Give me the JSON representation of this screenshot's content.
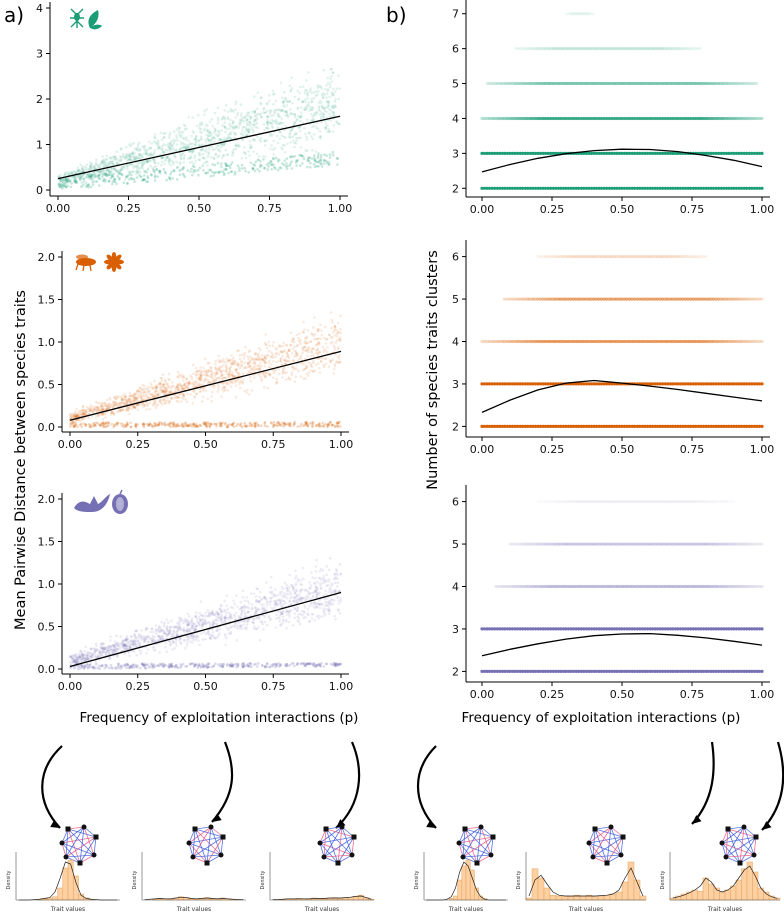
{
  "panel_labels": {
    "a": "a)",
    "b": "b)"
  },
  "ylabel_left": "Mean Pairwise Distance between species traits",
  "ylabel_right": "Number of species traits clusters",
  "xlabel_left": "Frequency of exploitation interactions (p)",
  "xlabel_right": "Frequency of exploitation interactions (p)",
  "mini_plot": {
    "ylabel": "Density",
    "xlabel": "Trait values"
  },
  "colors": {
    "green": "#1b9e77",
    "orange": "#d95f02",
    "purple": "#7570b3",
    "hist": "#fdd0a2",
    "hist_stroke": "#e6a15c"
  },
  "icons": [
    "ant-and-leaf-icon",
    "fly-and-flower-icon",
    "bat-and-fruit-icon"
  ],
  "chart_data": [
    {
      "type": "scatter",
      "title": "",
      "xlabel": "",
      "ylabel": "",
      "xlim": [
        0,
        1
      ],
      "ylim": [
        0,
        4
      ],
      "x_ticks": [
        "0.00",
        "0.25",
        "0.50",
        "0.75",
        "1.00"
      ],
      "y_ticks": [
        "0",
        "1",
        "2",
        "3",
        "4"
      ],
      "color": "#1b9e77",
      "band": {
        "low": [
          0.0,
          0.6
        ],
        "high": [
          0.4,
          3.2
        ]
      },
      "lower_band": {
        "low": [
          0.0,
          0.55
        ],
        "high": [
          0.25,
          0.85
        ]
      },
      "fit": {
        "x": [
          0,
          1
        ],
        "y": [
          0.25,
          1.62
        ]
      }
    },
    {
      "type": "scatter",
      "title": "",
      "xlabel": "",
      "ylabel": "",
      "xlim": [
        0,
        1
      ],
      "ylim": [
        0,
        2
      ],
      "x_ticks": [
        "0.00",
        "0.25",
        "0.50",
        "0.75",
        "1.00"
      ],
      "y_ticks": [
        "0.0",
        "0.5",
        "1.0",
        "1.5",
        "2.0"
      ],
      "color": "#d95f02",
      "band": {
        "low": [
          0.0,
          0.5
        ],
        "high": [
          0.2,
          1.5
        ]
      },
      "lower_band": {
        "low": [
          0.0,
          0.0
        ],
        "high": [
          0.05,
          0.06
        ]
      },
      "fit": {
        "x": [
          0,
          1
        ],
        "y": [
          0.08,
          0.89
        ]
      }
    },
    {
      "type": "scatter",
      "title": "",
      "xlabel": "",
      "ylabel": "",
      "xlim": [
        0,
        1
      ],
      "ylim": [
        0,
        2
      ],
      "x_ticks": [
        "0.00",
        "0.25",
        "0.50",
        "0.75",
        "1.00"
      ],
      "y_ticks": [
        "0.0",
        "0.5",
        "1.0",
        "1.5",
        "2.0"
      ],
      "color": "#7570b3",
      "band": {
        "low": [
          0.0,
          0.45
        ],
        "high": [
          0.2,
          1.45
        ]
      },
      "lower_band": {
        "low": [
          0.0,
          0.03
        ],
        "high": [
          0.06,
          0.07
        ]
      },
      "fit": {
        "x": [
          0,
          1
        ],
        "y": [
          0.03,
          0.9
        ]
      }
    },
    {
      "type": "scatter",
      "title": "",
      "xlabel": "",
      "ylabel": "",
      "xlim": [
        0,
        1
      ],
      "ylim": [
        1.75,
        7.25
      ],
      "x_ticks": [
        "0.00",
        "0.25",
        "0.50",
        "0.75",
        "1.00"
      ],
      "y_ticks": [
        "2",
        "3",
        "4",
        "5",
        "6",
        "7"
      ],
      "color": "#1b9e77",
      "rows": [
        {
          "y": 2,
          "from": 0.0,
          "to": 1.0,
          "alpha": 1.0
        },
        {
          "y": 3,
          "from": 0.0,
          "to": 1.0,
          "alpha": 1.0
        },
        {
          "y": 4,
          "from": 0.0,
          "to": 1.0,
          "alpha": 0.85
        },
        {
          "y": 5,
          "from": 0.02,
          "to": 0.98,
          "alpha": 0.55
        },
        {
          "y": 6,
          "from": 0.12,
          "to": 0.78,
          "alpha": 0.22
        },
        {
          "y": 7,
          "from": 0.3,
          "to": 0.4,
          "alpha": 0.12
        }
      ],
      "fit": {
        "x": [
          0,
          0.1,
          0.2,
          0.3,
          0.4,
          0.5,
          0.6,
          0.7,
          0.8,
          0.9,
          1.0
        ],
        "y": [
          2.47,
          2.68,
          2.86,
          2.99,
          3.08,
          3.12,
          3.11,
          3.05,
          2.94,
          2.8,
          2.62
        ]
      }
    },
    {
      "type": "scatter",
      "title": "",
      "xlabel": "",
      "ylabel": "",
      "xlim": [
        0,
        1
      ],
      "ylim": [
        1.75,
        6.25
      ],
      "x_ticks": [
        "0.00",
        "0.25",
        "0.50",
        "0.75",
        "1.00"
      ],
      "y_ticks": [
        "2",
        "3",
        "4",
        "5",
        "6"
      ],
      "color": "#d95f02",
      "rows": [
        {
          "y": 2,
          "from": 0.0,
          "to": 1.0,
          "alpha": 1.0
        },
        {
          "y": 3,
          "from": 0.0,
          "to": 1.0,
          "alpha": 1.0
        },
        {
          "y": 4,
          "from": 0.0,
          "to": 1.0,
          "alpha": 0.6
        },
        {
          "y": 5,
          "from": 0.08,
          "to": 1.0,
          "alpha": 0.55
        },
        {
          "y": 6,
          "from": 0.2,
          "to": 0.8,
          "alpha": 0.2
        }
      ],
      "fit": {
        "x": [
          0,
          0.1,
          0.2,
          0.3,
          0.4,
          0.5,
          0.6,
          0.7,
          0.8,
          0.9,
          1.0
        ],
        "y": [
          2.33,
          2.62,
          2.86,
          3.02,
          3.08,
          3.02,
          2.95,
          2.87,
          2.78,
          2.69,
          2.6
        ]
      }
    },
    {
      "type": "scatter",
      "title": "",
      "xlabel": "",
      "ylabel": "",
      "xlim": [
        0,
        1
      ],
      "ylim": [
        1.75,
        6.25
      ],
      "x_ticks": [
        "0.00",
        "0.25",
        "0.50",
        "0.75",
        "1.00"
      ],
      "y_ticks": [
        "2",
        "3",
        "4",
        "5",
        "6"
      ],
      "color": "#7570b3",
      "rows": [
        {
          "y": 2,
          "from": 0.0,
          "to": 1.0,
          "alpha": 1.0
        },
        {
          "y": 3,
          "from": 0.0,
          "to": 1.0,
          "alpha": 1.0
        },
        {
          "y": 4,
          "from": 0.05,
          "to": 1.0,
          "alpha": 0.45
        },
        {
          "y": 5,
          "from": 0.1,
          "to": 1.0,
          "alpha": 0.35
        },
        {
          "y": 6,
          "from": 0.2,
          "to": 0.9,
          "alpha": 0.1
        }
      ],
      "fit": {
        "x": [
          0,
          0.1,
          0.2,
          0.3,
          0.4,
          0.5,
          0.6,
          0.7,
          0.8,
          0.9,
          1.0
        ],
        "y": [
          2.37,
          2.52,
          2.65,
          2.76,
          2.84,
          2.88,
          2.89,
          2.85,
          2.79,
          2.71,
          2.62
        ]
      }
    }
  ],
  "histograms": [
    {
      "bars": [
        0,
        0,
        0,
        0,
        0.02,
        0.03,
        0.05,
        0.08,
        0.3,
        0.8,
        1.0,
        0.6,
        0.15,
        0.05,
        0.02,
        0,
        0,
        0,
        0,
        0
      ],
      "curve": [
        0,
        0,
        0,
        0.01,
        0.02,
        0.04,
        0.06,
        0.2,
        0.55,
        0.95,
        0.9,
        0.45,
        0.12,
        0.04,
        0.02,
        0.01,
        0,
        0,
        0,
        0
      ]
    },
    {
      "bars": [
        0,
        0,
        0.02,
        0.04,
        0.03,
        0.02,
        0.05,
        0.08,
        0.06,
        0.03,
        0.02,
        0.04,
        0.06,
        0.03,
        0.02,
        0.05,
        0.03,
        0.02,
        0.01,
        0
      ],
      "curve": [
        0.01,
        0.02,
        0.03,
        0.04,
        0.03,
        0.03,
        0.05,
        0.07,
        0.06,
        0.04,
        0.03,
        0.04,
        0.05,
        0.04,
        0.03,
        0.04,
        0.03,
        0.02,
        0.01,
        0.01
      ]
    },
    {
      "bars": [
        0,
        0.01,
        0.02,
        0.03,
        0.02,
        0.04,
        0.03,
        0.02,
        0.05,
        0.04,
        0.03,
        0.05,
        0.06,
        0.04,
        0.05,
        0.07,
        0.09,
        0.12,
        0.06,
        0.02
      ],
      "curve": [
        0.01,
        0.01,
        0.02,
        0.03,
        0.03,
        0.03,
        0.03,
        0.03,
        0.04,
        0.04,
        0.04,
        0.05,
        0.05,
        0.05,
        0.06,
        0.07,
        0.09,
        0.1,
        0.06,
        0.02
      ]
    },
    {
      "bars": [
        0,
        0,
        0,
        0,
        0,
        0,
        0.04,
        0.1,
        0.5,
        0.85,
        1.0,
        0.75,
        0.3,
        0.1,
        0.03,
        0,
        0,
        0,
        0,
        0
      ],
      "curve": [
        0,
        0,
        0,
        0,
        0,
        0.02,
        0.08,
        0.3,
        0.7,
        0.95,
        0.85,
        0.55,
        0.25,
        0.08,
        0.02,
        0,
        0,
        0,
        0,
        0
      ]
    },
    {
      "bars": [
        0.05,
        0.78,
        0.55,
        0.3,
        0.12,
        0.1,
        0.1,
        0.08,
        0.12,
        0.1,
        0.12,
        0.08,
        0.1,
        0.12,
        0.15,
        0.2,
        0.45,
        0.95,
        0.5,
        0.1
      ],
      "curve": [
        0.1,
        0.5,
        0.62,
        0.4,
        0.2,
        0.12,
        0.1,
        0.1,
        0.1,
        0.1,
        0.1,
        0.1,
        0.11,
        0.12,
        0.15,
        0.25,
        0.55,
        0.8,
        0.45,
        0.1
      ]
    },
    {
      "bars": [
        0.05,
        0.1,
        0.15,
        0.2,
        0.25,
        0.22,
        0.55,
        0.4,
        0.3,
        0.2,
        0.25,
        0.35,
        0.5,
        0.78,
        0.95,
        0.7,
        0.3,
        0.2,
        0.1,
        0.05
      ],
      "curve": [
        0.05,
        0.08,
        0.12,
        0.18,
        0.25,
        0.35,
        0.55,
        0.45,
        0.25,
        0.2,
        0.25,
        0.35,
        0.55,
        0.75,
        0.85,
        0.6,
        0.3,
        0.15,
        0.08,
        0.04
      ]
    }
  ]
}
